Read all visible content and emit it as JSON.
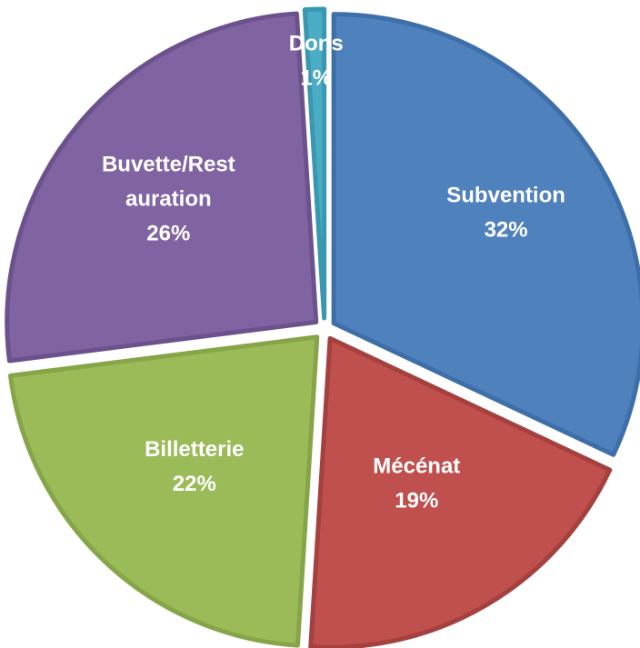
{
  "chart_data": {
    "type": "pie",
    "title": "",
    "start_angle_deg": 0,
    "direction": "clockwise",
    "exploded": true,
    "slices": [
      {
        "label_lines": [
          "Subvention"
        ],
        "percent_label": "32%",
        "value": 32,
        "color": "#4F81BD",
        "edge": "#3F6FA8"
      },
      {
        "label_lines": [
          "Mécénat"
        ],
        "percent_label": "19%",
        "value": 19,
        "color": "#C0504D",
        "edge": "#A4403D"
      },
      {
        "label_lines": [
          "Billetterie"
        ],
        "percent_label": "22%",
        "value": 22,
        "color": "#9BBB59",
        "edge": "#86A548"
      },
      {
        "label_lines": [
          "Buvette/Rest",
          "auration"
        ],
        "percent_label": "26%",
        "value": 26,
        "color": "#8064A2",
        "edge": "#6C528D"
      },
      {
        "label_lines": [
          "Dons"
        ],
        "percent_label": "1%",
        "value": 1,
        "color": "#4BACC6",
        "edge": "#3A97B0"
      }
    ]
  }
}
